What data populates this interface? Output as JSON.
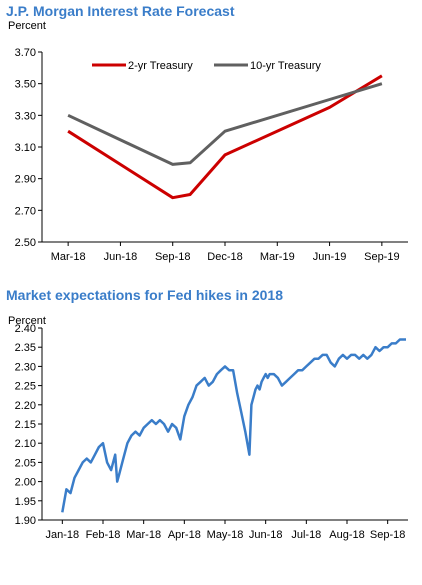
{
  "chart_data": [
    {
      "type": "line",
      "title": "J.P. Morgan Interest Rate Forecast",
      "ylabel": "Percent",
      "ylim": [
        2.5,
        3.7
      ],
      "yticks": [
        "3.70",
        "3.50",
        "3.30",
        "3.10",
        "2.90",
        "2.70",
        "2.50"
      ],
      "categories": [
        "Mar-18",
        "Jun-18",
        "Sep-18",
        "Dec-18",
        "Mar-19",
        "Jun-19",
        "Sep-19"
      ],
      "legend_placement": "top",
      "series": [
        {
          "name": "2-yr Treasury",
          "color": "#cc0000",
          "points": [
            {
              "x": "Mar-18",
              "y": 3.2
            },
            {
              "x": "Sep-18",
              "y": 2.78
            },
            {
              "x": "Oct-18",
              "y": 2.8
            },
            {
              "x": "Dec-18",
              "y": 3.05
            },
            {
              "x": "Jun-19",
              "y": 3.35
            },
            {
              "x": "Sep-19",
              "y": 3.55
            }
          ]
        },
        {
          "name": "10-yr Treasury",
          "color": "#606060",
          "points": [
            {
              "x": "Mar-18",
              "y": 3.3
            },
            {
              "x": "Sep-18",
              "y": 2.99
            },
            {
              "x": "Oct-18",
              "y": 3.0
            },
            {
              "x": "Dec-18",
              "y": 3.2
            },
            {
              "x": "Jun-19",
              "y": 3.4
            },
            {
              "x": "Sep-19",
              "y": 3.5
            }
          ]
        }
      ]
    },
    {
      "type": "line",
      "title": "Market expectations for Fed hikes in 2018",
      "ylabel": "Percent",
      "ylim": [
        1.9,
        2.4
      ],
      "yticks": [
        "2.40",
        "2.35",
        "2.30",
        "2.25",
        "2.20",
        "2.15",
        "2.10",
        "2.05",
        "2.00",
        "1.95",
        "1.90"
      ],
      "categories": [
        "Jan-18",
        "Feb-18",
        "Mar-18",
        "Apr-18",
        "May-18",
        "Jun-18",
        "Jul-18",
        "Aug-18",
        "Sep-18"
      ],
      "series": [
        {
          "color": "#3a7dc9",
          "x": [
            0,
            0.1,
            0.2,
            0.3,
            0.4,
            0.5,
            0.6,
            0.7,
            0.8,
            0.9,
            1.0,
            1.1,
            1.2,
            1.3,
            1.35,
            1.4,
            1.5,
            1.6,
            1.7,
            1.8,
            1.9,
            2.0,
            2.1,
            2.2,
            2.3,
            2.4,
            2.5,
            2.6,
            2.7,
            2.8,
            2.9,
            3.0,
            3.1,
            3.2,
            3.3,
            3.4,
            3.5,
            3.6,
            3.7,
            3.8,
            3.9,
            4.0,
            4.1,
            4.2,
            4.3,
            4.4,
            4.5,
            4.6,
            4.65,
            4.7,
            4.75,
            4.8,
            4.85,
            4.9,
            4.95,
            5.0,
            5.05,
            5.1,
            5.2,
            5.3,
            5.4,
            5.5,
            5.6,
            5.7,
            5.8,
            5.9,
            6.0,
            6.1,
            6.2,
            6.3,
            6.4,
            6.5,
            6.6,
            6.7,
            6.8,
            6.9,
            7.0,
            7.1,
            7.2,
            7.3,
            7.4,
            7.5,
            7.6,
            7.7,
            7.8,
            7.9,
            8.0,
            8.1,
            8.2,
            8.3,
            8.45
          ],
          "y": [
            1.92,
            1.98,
            1.97,
            2.01,
            2.03,
            2.05,
            2.06,
            2.05,
            2.07,
            2.09,
            2.1,
            2.05,
            2.03,
            2.07,
            2.0,
            2.02,
            2.06,
            2.1,
            2.12,
            2.13,
            2.12,
            2.14,
            2.15,
            2.16,
            2.15,
            2.16,
            2.15,
            2.13,
            2.15,
            2.14,
            2.11,
            2.17,
            2.2,
            2.22,
            2.25,
            2.26,
            2.27,
            2.25,
            2.26,
            2.28,
            2.29,
            2.3,
            2.29,
            2.29,
            2.23,
            2.18,
            2.13,
            2.07,
            2.2,
            2.22,
            2.24,
            2.25,
            2.24,
            2.26,
            2.27,
            2.28,
            2.27,
            2.28,
            2.28,
            2.27,
            2.25,
            2.26,
            2.27,
            2.28,
            2.29,
            2.29,
            2.3,
            2.31,
            2.32,
            2.32,
            2.33,
            2.33,
            2.31,
            2.3,
            2.32,
            2.33,
            2.32,
            2.33,
            2.33,
            2.32,
            2.33,
            2.32,
            2.33,
            2.35,
            2.34,
            2.35,
            2.35,
            2.36,
            2.36,
            2.37,
            2.37
          ]
        }
      ]
    }
  ]
}
